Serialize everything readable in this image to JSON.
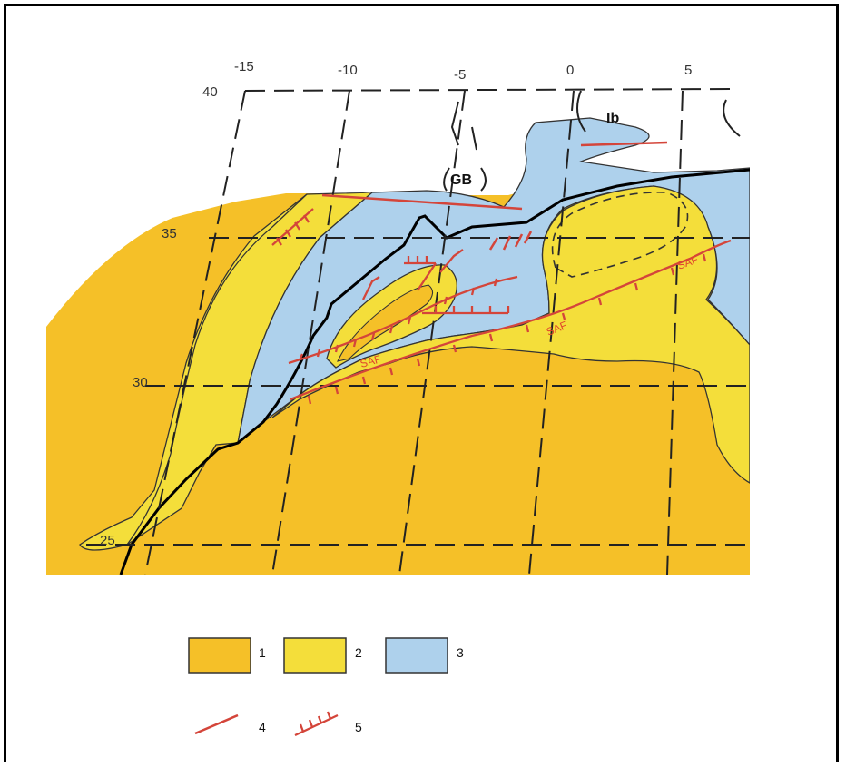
{
  "map": {
    "longitude_labels": [
      "-15",
      "-10",
      "-5",
      "0",
      "5"
    ],
    "latitude_labels": [
      "40",
      "35",
      "30",
      "25"
    ],
    "place_labels": {
      "gb": "GB",
      "ib": "Ib"
    },
    "fault_labels": [
      "SAF",
      "SAF",
      "SAF"
    ]
  },
  "legend": {
    "items": [
      {
        "number": "1",
        "color": "#f5c028"
      },
      {
        "number": "2",
        "color": "#f4de3a"
      },
      {
        "number": "3",
        "color": "#aed1ec"
      },
      {
        "number": "4",
        "color": "#d4453a"
      },
      {
        "number": "5",
        "color": "#d4453a"
      }
    ]
  },
  "colors": {
    "zone1": "#f5c028",
    "zone2": "#f4de3a",
    "zone3": "#aed1ec",
    "fault": "#d4453a"
  }
}
